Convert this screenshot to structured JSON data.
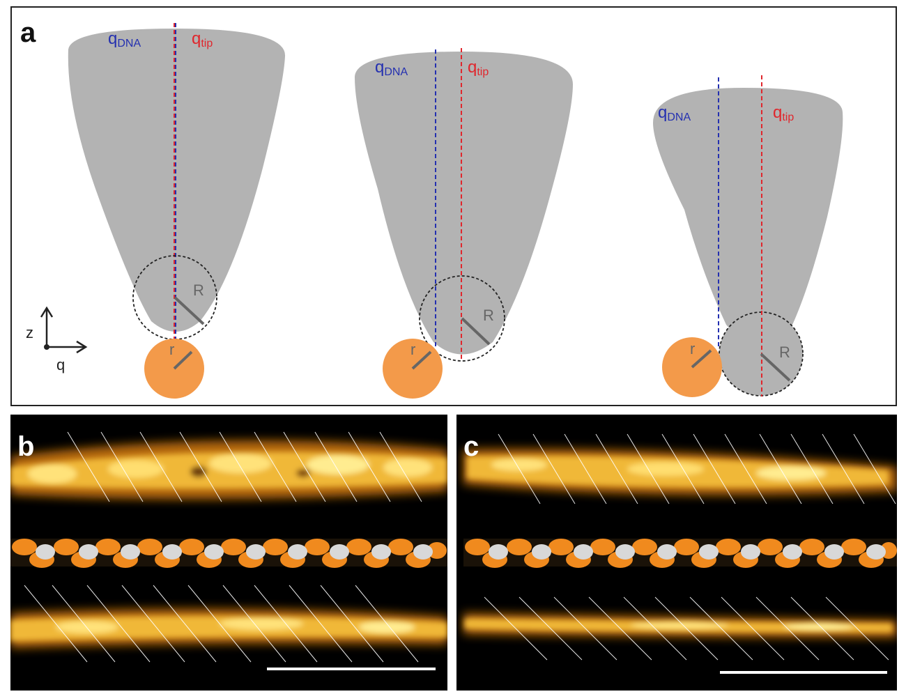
{
  "figure": {
    "panel_a": {
      "letter": "a",
      "label_q_dna_main": "q",
      "label_q_dna_sub": "DNA",
      "label_q_tip_main": "q",
      "label_q_tip_sub": "tip",
      "label_big_radius": "R",
      "label_small_radius": "r",
      "axis_vertical": "z",
      "axis_horizontal": "q",
      "colors": {
        "tip": "#b3b3b3",
        "sphere": "#f39a4a",
        "q_dna_line": "#2430b0",
        "q_tip_line": "#e0262c",
        "radius_line": "#666666"
      }
    },
    "panel_b": {
      "letter": "b"
    },
    "panel_c": {
      "letter": "c"
    },
    "colors": {
      "afm_bright": "#ffe680",
      "afm_mid": "#e8a020",
      "dna_orange": "#f08a1e",
      "dna_white": "#d8d8d8"
    }
  }
}
